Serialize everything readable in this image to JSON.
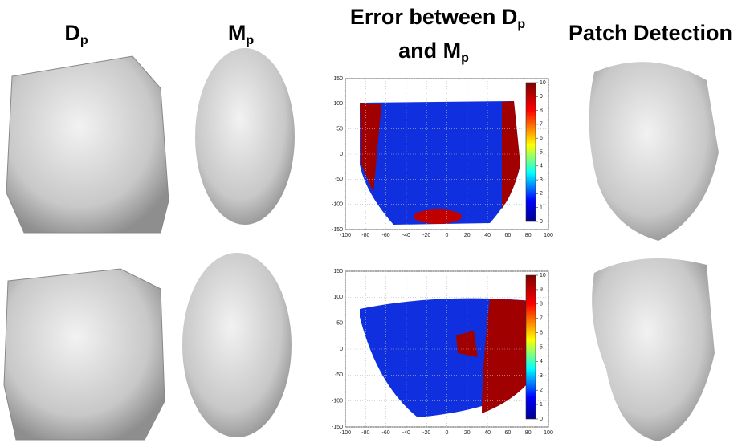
{
  "columns": [
    {
      "title": "D",
      "subscript": "p"
    },
    {
      "title": "M",
      "subscript": "p"
    },
    {
      "title_parts": [
        "Error between D",
        "p",
        "and M",
        "p"
      ]
    },
    {
      "title": "Patch Detection"
    }
  ],
  "error_maps": [
    {
      "xticks": [
        -100,
        -80,
        -60,
        -40,
        -20,
        0,
        20,
        40,
        60,
        80,
        100
      ],
      "yticks": [
        150,
        100,
        50,
        0,
        -50,
        -100,
        -150
      ],
      "colorbar_ticks": [
        0,
        1,
        2,
        3,
        4,
        5,
        6,
        7,
        8,
        9,
        10
      ]
    },
    {
      "xticks": [
        -100,
        -80,
        -60,
        -40,
        -20,
        0,
        20,
        40,
        60,
        80,
        100
      ],
      "yticks": [
        150,
        100,
        50,
        0,
        -50,
        -100,
        -150
      ],
      "colorbar_ticks": [
        0,
        1,
        2,
        3,
        4,
        5,
        6,
        7,
        8,
        9,
        10
      ]
    }
  ]
}
